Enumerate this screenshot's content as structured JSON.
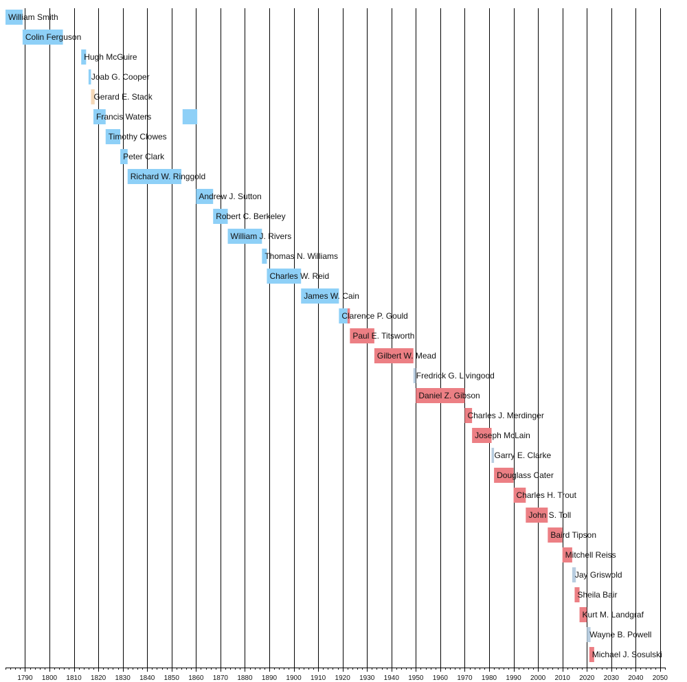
{
  "chart_data": {
    "type": "timeline",
    "title": "",
    "xlabel": "",
    "ylabel": "",
    "xlim": [
      1782,
      2052
    ],
    "grid": true,
    "legend": "none",
    "colors": {
      "blue": "#8ed0f7",
      "red": "#ec7f84",
      "grey": "#b8cde0",
      "tan": "#f5d9b8"
    },
    "x_ticks": [
      1790,
      1800,
      1810,
      1820,
      1830,
      1840,
      1850,
      1860,
      1870,
      1880,
      1890,
      1900,
      1910,
      1920,
      1930,
      1940,
      1950,
      1960,
      1970,
      1980,
      1990,
      2000,
      2010,
      2020,
      2030,
      2040,
      2050
    ],
    "entries": [
      {
        "name": "William Smith",
        "start": 1782,
        "end": 1789,
        "color": "blue"
      },
      {
        "name": "Colin Ferguson",
        "start": 1789,
        "end": 1805.5,
        "color": "blue"
      },
      {
        "name": "Hugh McGuire",
        "start": 1813,
        "end": 1815,
        "color": "blue"
      },
      {
        "name": "Joab G. Cooper",
        "start": 1816,
        "end": 1817,
        "color": "blue"
      },
      {
        "name": "Gerard E. Stack",
        "start": 1817,
        "end": 1818.5,
        "color": "tan"
      },
      {
        "name": "Francis Waters",
        "start": 1818,
        "end": 1823,
        "color": "blue"
      },
      {
        "name": "Francis Waters",
        "start": 1854.5,
        "end": 1860.5,
        "color": "blue",
        "unlabeled": true
      },
      {
        "name": "Timothy Clowes",
        "start": 1823,
        "end": 1829,
        "color": "blue"
      },
      {
        "name": "Peter Clark",
        "start": 1829,
        "end": 1832,
        "color": "blue"
      },
      {
        "name": "Richard W. Ringgold",
        "start": 1832,
        "end": 1854,
        "color": "blue"
      },
      {
        "name": "Andrew J. Sutton",
        "start": 1860,
        "end": 1867,
        "color": "blue"
      },
      {
        "name": "Robert C. Berkeley",
        "start": 1867,
        "end": 1873,
        "color": "blue"
      },
      {
        "name": "William J. Rivers",
        "start": 1873,
        "end": 1887,
        "color": "blue"
      },
      {
        "name": "Thomas N. Williams",
        "start": 1887,
        "end": 1889,
        "color": "blue"
      },
      {
        "name": "Charles W. Reid",
        "start": 1889,
        "end": 1903,
        "color": "blue"
      },
      {
        "name": "James W. Cain",
        "start": 1903,
        "end": 1918.5,
        "color": "blue"
      },
      {
        "name": "Clarence P. Gould",
        "start": 1918.5,
        "end": 1922,
        "color": "blue"
      },
      {
        "name": "Clarence P. Gould",
        "start": 1922,
        "end": 1923,
        "color": "red",
        "unlabeled": true
      },
      {
        "name": "Paul E. Titsworth",
        "start": 1923,
        "end": 1933,
        "color": "red"
      },
      {
        "name": "Gilbert W. Mead",
        "start": 1933,
        "end": 1949,
        "color": "red"
      },
      {
        "name": "Fredrick G. Livingood",
        "start": 1949,
        "end": 1950,
        "color": "grey"
      },
      {
        "name": "Daniel Z. Gibson",
        "start": 1950,
        "end": 1970,
        "color": "red"
      },
      {
        "name": "Charles J. Merdinger",
        "start": 1970,
        "end": 1973,
        "color": "red"
      },
      {
        "name": "Joseph McLain",
        "start": 1973,
        "end": 1981,
        "color": "red"
      },
      {
        "name": "Garry E. Clarke",
        "start": 1981,
        "end": 1982,
        "color": "grey"
      },
      {
        "name": "Douglass Cater",
        "start": 1982,
        "end": 1990,
        "color": "red"
      },
      {
        "name": "Charles H. Trout",
        "start": 1990,
        "end": 1995,
        "color": "red"
      },
      {
        "name": "John S. Toll",
        "start": 1995,
        "end": 2004,
        "color": "red"
      },
      {
        "name": "Baird Tipson",
        "start": 2004,
        "end": 2010,
        "color": "red"
      },
      {
        "name": "Mitchell Reiss",
        "start": 2010,
        "end": 2014,
        "color": "red"
      },
      {
        "name": "Jay Griswold",
        "start": 2014,
        "end": 2015.5,
        "color": "grey"
      },
      {
        "name": "Sheila Bair",
        "start": 2015,
        "end": 2017,
        "color": "red"
      },
      {
        "name": "Kurt M. Landgraf",
        "start": 2017,
        "end": 2020,
        "color": "red"
      },
      {
        "name": "Wayne B. Powell",
        "start": 2020,
        "end": 2021.5,
        "color": "grey"
      },
      {
        "name": "Michael J. Sosulski",
        "start": 2021,
        "end": 2023,
        "color": "red"
      }
    ]
  }
}
